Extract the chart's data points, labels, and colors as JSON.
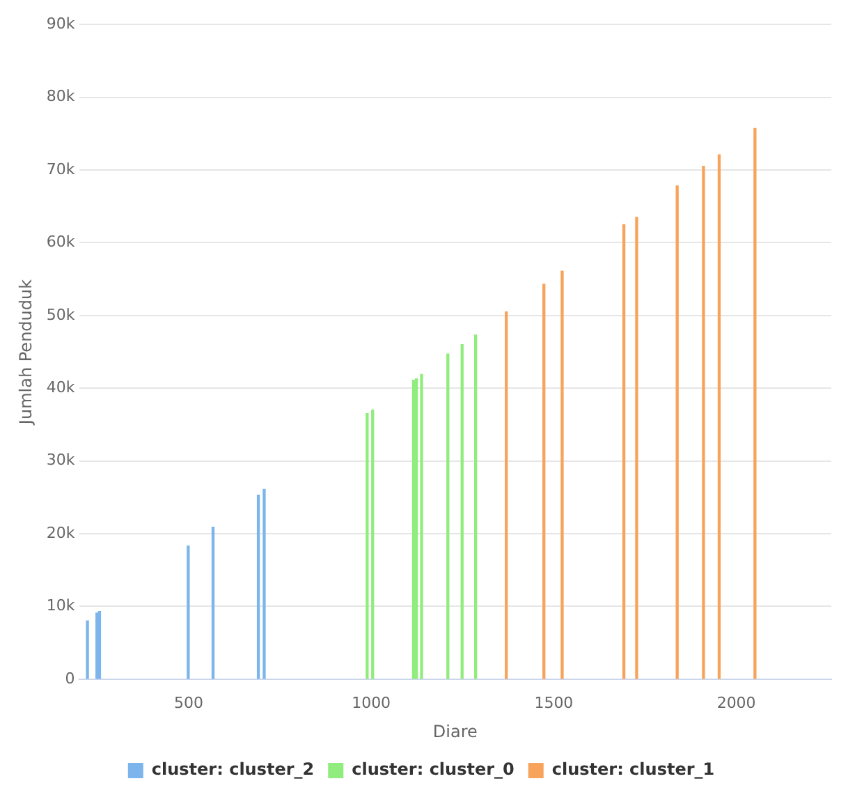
{
  "chart_data": {
    "type": "bar",
    "xlabel": "Diare",
    "ylabel": "Jumlah Penduduk",
    "series": [
      {
        "name": "cluster: cluster_2",
        "color": "#7cb5ec",
        "x": [
          223,
          249,
          256,
          499,
          567,
          691,
          707
        ],
        "values": [
          8000,
          9100,
          9300,
          18300,
          20900,
          25300,
          26100
        ]
      },
      {
        "name": "cluster: cluster_0",
        "color": "#90ed7d",
        "x": [
          989,
          1004,
          1116,
          1124,
          1138,
          1210,
          1249,
          1286
        ],
        "values": [
          36500,
          37000,
          41100,
          41300,
          41900,
          44700,
          46000,
          47300
        ]
      },
      {
        "name": "cluster: cluster_1",
        "color": "#f7a35c",
        "x": [
          1370,
          1473,
          1523,
          1692,
          1727,
          1838,
          1910,
          1953,
          2051
        ],
        "values": [
          50500,
          54300,
          56100,
          62500,
          63500,
          67800,
          70500,
          72100,
          75700
        ]
      }
    ],
    "xlim": [
      200,
      2260
    ],
    "xticks": [
      500,
      1000,
      1500,
      2000
    ],
    "ylim": [
      0,
      90000
    ],
    "yticks": [
      {
        "value": 0,
        "label": "0"
      },
      {
        "value": 10000,
        "label": "10k"
      },
      {
        "value": 20000,
        "label": "20k"
      },
      {
        "value": 30000,
        "label": "30k"
      },
      {
        "value": 40000,
        "label": "40k"
      },
      {
        "value": 50000,
        "label": "50k"
      },
      {
        "value": 60000,
        "label": "60k"
      },
      {
        "value": 70000,
        "label": "70k"
      },
      {
        "value": 80000,
        "label": "80k"
      },
      {
        "value": 90000,
        "label": "90k"
      }
    ],
    "grid": "y",
    "legend": "bottom"
  }
}
